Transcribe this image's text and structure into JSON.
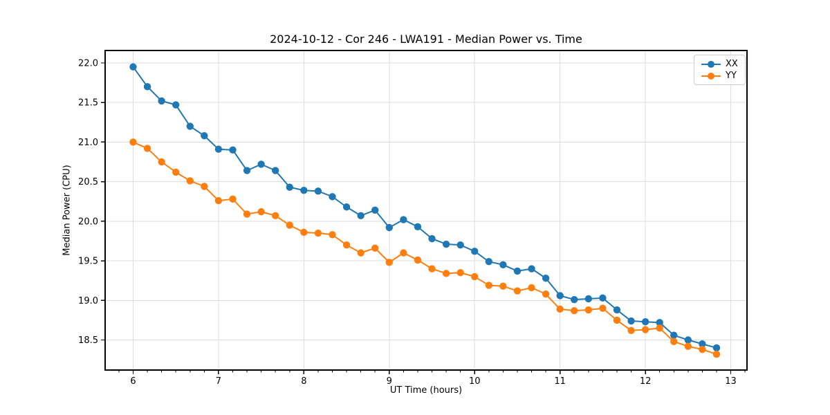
{
  "chart": {
    "title": "2024-10-12 - Cor 246 - LWA191 - Median Power vs. Time",
    "xlabel": "UT Time (hours)",
    "ylabel": "Median Power (CPU)"
  },
  "chart_data": {
    "type": "line",
    "title": "2024-10-12 - Cor 246 - LWA191 - Median Power vs. Time",
    "xlabel": "UT Time (hours)",
    "ylabel": "Median Power (CPU)",
    "xlim": [
      5.672,
      13.19
    ],
    "ylim": [
      18.12,
      22.157
    ],
    "grid": true,
    "legend_position": "upper right",
    "x_ticks": {
      "values": [
        6,
        7,
        8,
        9,
        10,
        11,
        12,
        13
      ],
      "labels": [
        "6",
        "7",
        "8",
        "9",
        "10",
        "11",
        "12",
        "13"
      ]
    },
    "y_ticks": {
      "values": [
        18.5,
        19.0,
        19.5,
        20.0,
        20.5,
        21.0,
        21.5,
        22.0
      ],
      "labels": [
        "18.5",
        "19.0",
        "19.5",
        "20.0",
        "20.5",
        "21.0",
        "21.5",
        "22.0"
      ]
    },
    "x_minor_step": 0.166667,
    "x": [
      6.0,
      6.1667,
      6.3333,
      6.5,
      6.6667,
      6.8333,
      7.0,
      7.1667,
      7.3333,
      7.5,
      7.6667,
      7.8333,
      8.0,
      8.1667,
      8.3333,
      8.5,
      8.6667,
      8.8333,
      9.0,
      9.1667,
      9.3333,
      9.5,
      9.6667,
      9.8333,
      10.0,
      10.1667,
      10.3333,
      10.5,
      10.6667,
      10.8333,
      11.0,
      11.1667,
      11.3333,
      11.5,
      11.6667,
      11.8333,
      12.0,
      12.1667,
      12.3333,
      12.5,
      12.6667,
      12.8333
    ],
    "series": [
      {
        "name": "XX",
        "color": "#1f77b4",
        "values": [
          21.95,
          21.7,
          21.52,
          21.47,
          21.2,
          21.08,
          20.91,
          20.9,
          20.64,
          20.72,
          20.64,
          20.43,
          20.39,
          20.38,
          20.31,
          20.18,
          20.07,
          20.14,
          19.92,
          20.02,
          19.93,
          19.78,
          19.71,
          19.7,
          19.62,
          19.49,
          19.45,
          19.37,
          19.4,
          19.28,
          19.06,
          19.01,
          19.02,
          19.03,
          18.88,
          18.74,
          18.73,
          18.72,
          18.56,
          18.5,
          18.45,
          18.4
        ]
      },
      {
        "name": "YY",
        "color": "#ff7f0e",
        "values": [
          21.0,
          20.92,
          20.75,
          20.62,
          20.51,
          20.44,
          20.26,
          20.28,
          20.09,
          20.12,
          20.07,
          19.95,
          19.86,
          19.85,
          19.83,
          19.7,
          19.6,
          19.66,
          19.48,
          19.6,
          19.51,
          19.4,
          19.34,
          19.35,
          19.3,
          19.19,
          19.18,
          19.12,
          19.16,
          19.08,
          18.89,
          18.87,
          18.88,
          18.9,
          18.75,
          18.62,
          18.63,
          18.65,
          18.48,
          18.42,
          18.38,
          18.32
        ]
      }
    ]
  },
  "style": {
    "grid_color": "#dcdcdc",
    "spine_color": "#000000",
    "tick_color": "#000000",
    "tick_label_color": "#000000",
    "background": "#ffffff"
  }
}
